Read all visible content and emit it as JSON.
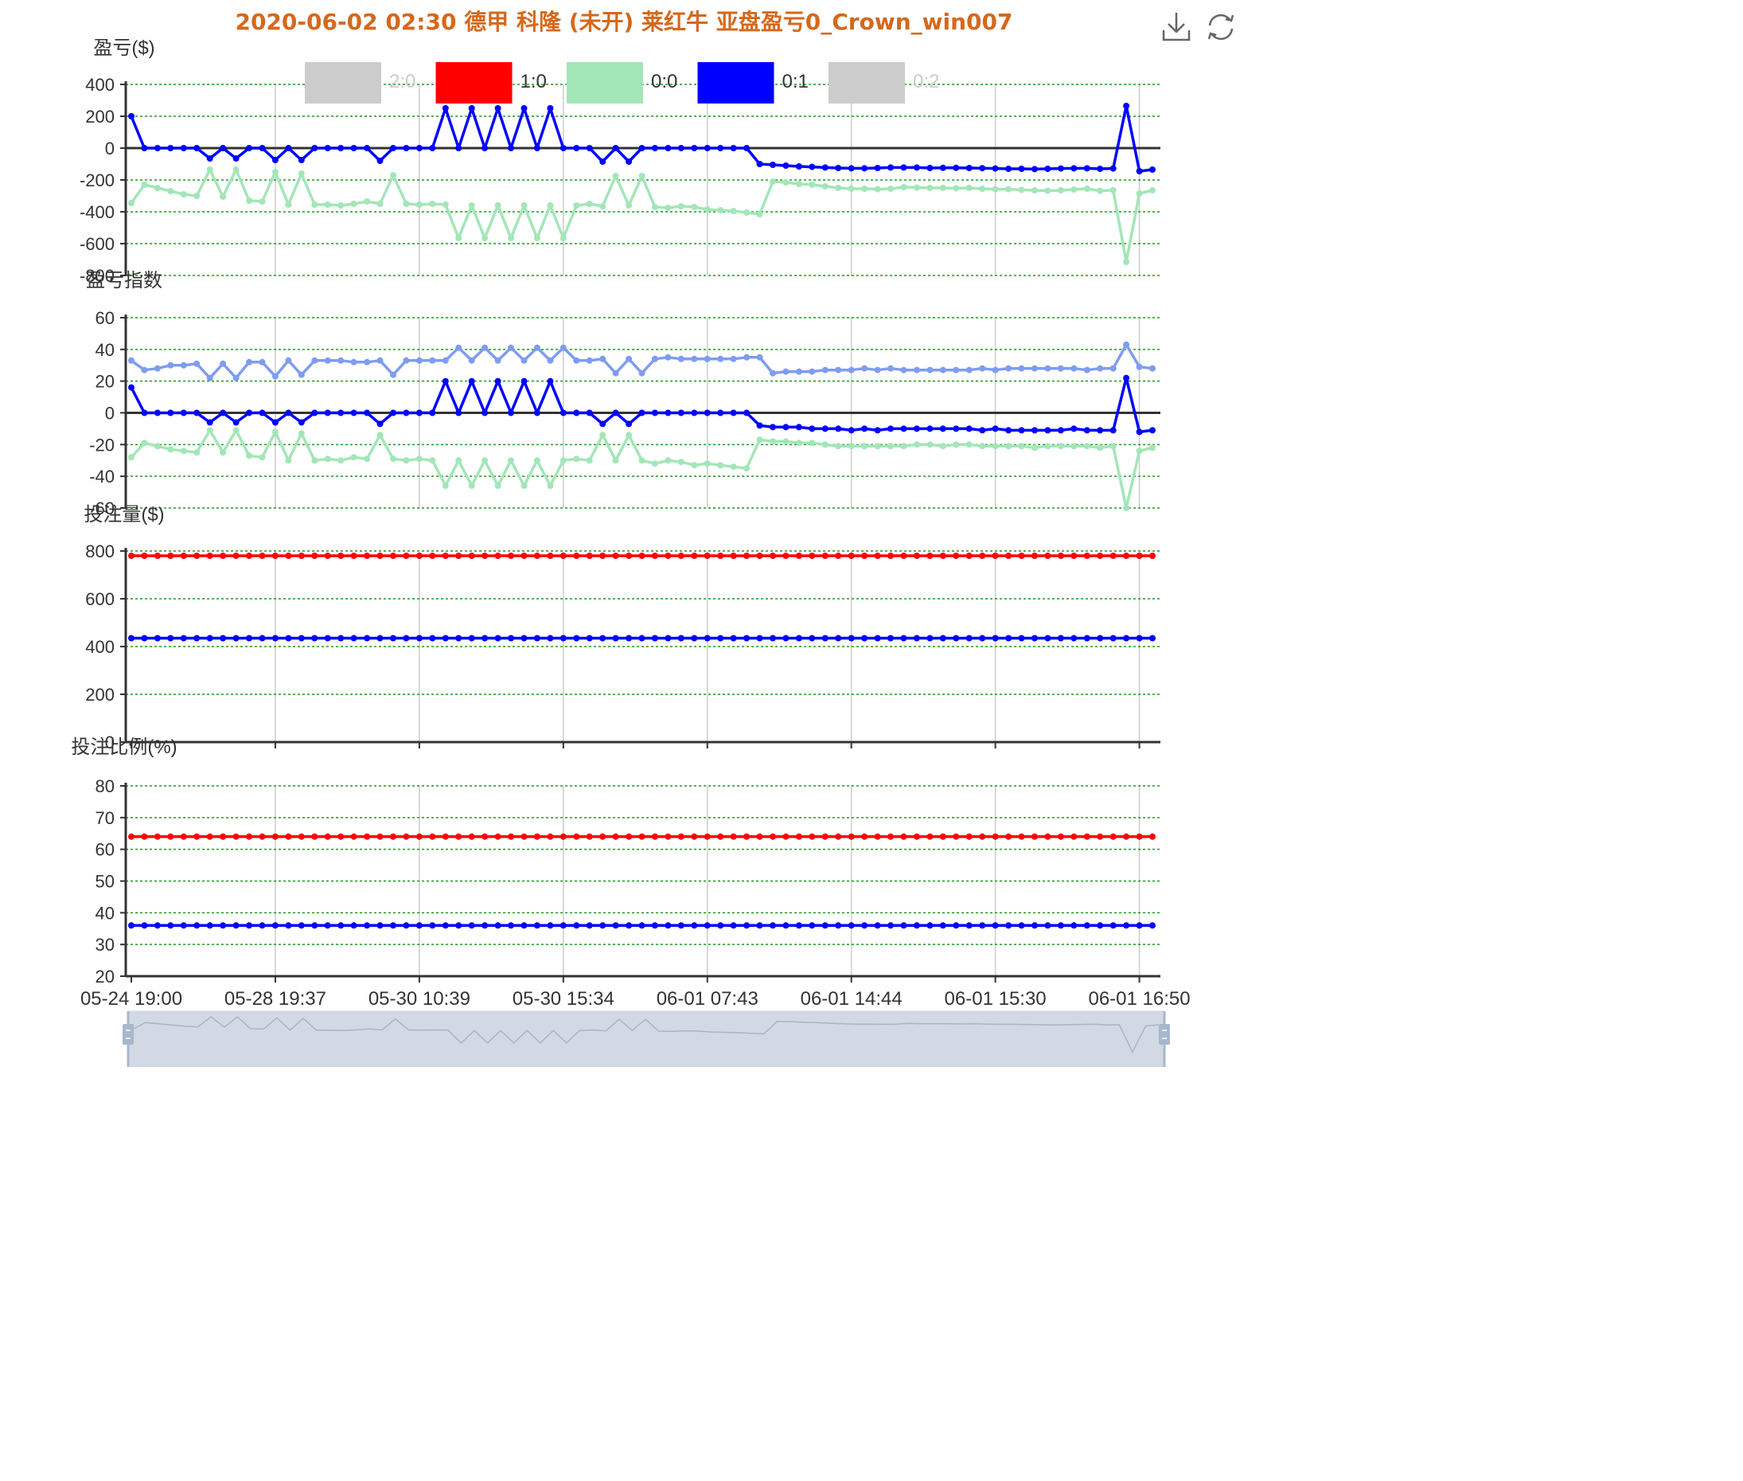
{
  "title": "2020-06-02 02:30 德甲 科隆 (未开) 莱红牛 亚盘盈亏0_Crown_win007",
  "toolbox": {
    "download_icon": "download-icon",
    "refresh_icon": "refresh-icon"
  },
  "colors": {
    "title": "#d6681b",
    "grid": "#1a9a1a",
    "axis": "#333333",
    "zoom_fill": "#d2d9e4",
    "zoom_handle": "#a7b7cc"
  },
  "chart_data": {
    "type": "line",
    "legend": {
      "placement": "top-center",
      "items": [
        {
          "name": "2:0",
          "color": "#cccccc",
          "active": false
        },
        {
          "name": "1:0",
          "color": "#ff0000",
          "active": true
        },
        {
          "name": "0:0",
          "color": "#a3e6b8",
          "active": true
        },
        {
          "name": "0:1",
          "color": "#0000ff",
          "active": true
        },
        {
          "name": "0:2",
          "color": "#cccccc",
          "active": false
        }
      ]
    },
    "x_tick_labels": [
      "05-24 19:00",
      "05-28 19:37",
      "05-30 10:39",
      "05-30 15:34",
      "06-01 07:43",
      "06-01 14:44",
      "06-01 15:30",
      "06-01 16:50"
    ],
    "x_tick_index": [
      0,
      11,
      22,
      33,
      44,
      55,
      66,
      77
    ],
    "point_count": 79,
    "vertical_grid": true,
    "datazoom": {
      "start": 0,
      "end": 100
    },
    "panels": [
      {
        "ylabel": "盈亏($)",
        "ylim": [
          -800,
          400
        ],
        "y_ticks": [
          400,
          200,
          0,
          -200,
          -400,
          -600,
          -800
        ],
        "zero_line": true,
        "series": [
          {
            "name": "0:0",
            "color": "#a3e6b8",
            "values": [
              -345,
              -230,
              -250,
              -270,
              -290,
              -300,
              -135,
              -305,
              -135,
              -330,
              -335,
              -150,
              -355,
              -160,
              -355,
              -355,
              -360,
              -350,
              -335,
              -350,
              -170,
              -350,
              -355,
              -350,
              -355,
              -565,
              -360,
              -565,
              -360,
              -565,
              -360,
              -565,
              -360,
              -565,
              -360,
              -350,
              -365,
              -175,
              -360,
              -175,
              -370,
              -375,
              -365,
              -370,
              -385,
              -390,
              -395,
              -405,
              -415,
              -210,
              -215,
              -225,
              -230,
              -240,
              -250,
              -255,
              -255,
              -258,
              -255,
              -245,
              -248,
              -250,
              -250,
              -252,
              -250,
              -255,
              -258,
              -258,
              -262,
              -265,
              -268,
              -265,
              -260,
              -255,
              -268,
              -265,
              -715,
              -285,
              -265
            ]
          },
          {
            "name": "0:1",
            "color": "#0000ff",
            "values": [
              200,
              0,
              0,
              0,
              0,
              0,
              -65,
              0,
              -65,
              0,
              0,
              -75,
              0,
              -75,
              0,
              0,
              0,
              0,
              0,
              -80,
              0,
              0,
              0,
              0,
              250,
              0,
              250,
              0,
              250,
              0,
              250,
              0,
              250,
              0,
              0,
              0,
              -85,
              0,
              -85,
              0,
              0,
              0,
              0,
              0,
              0,
              0,
              0,
              0,
              -100,
              -105,
              -110,
              -115,
              -118,
              -122,
              -125,
              -127,
              -127,
              -125,
              -122,
              -122,
              -122,
              -125,
              -124,
              -124,
              -125,
              -126,
              -128,
              -130,
              -130,
              -132,
              -130,
              -128,
              -127,
              -127,
              -130,
              -128,
              265,
              -145,
              -135
            ]
          }
        ]
      },
      {
        "ylabel": "盈亏指数",
        "ylim": [
          -60,
          60
        ],
        "y_ticks": [
          60,
          40,
          20,
          0,
          -20,
          -40,
          -60
        ],
        "zero_line": true,
        "series": [
          {
            "name": "0:0",
            "color": "#a3e6b8",
            "values": [
              -28,
              -19,
              -21,
              -23,
              -24,
              -25,
              -11,
              -25,
              -11,
              -27,
              -28,
              -12,
              -30,
              -13,
              -30,
              -29,
              -30,
              -28,
              -29,
              -14,
              -29,
              -30,
              -29,
              -30,
              -46,
              -30,
              -46,
              -30,
              -46,
              -30,
              -46,
              -30,
              -46,
              -30,
              -29,
              -30,
              -14,
              -30,
              -14,
              -30,
              -32,
              -30,
              -31,
              -33,
              -32,
              -33,
              -34,
              -35,
              -17,
              -18,
              -18,
              -19,
              -19,
              -20,
              -21,
              -21,
              -21,
              -21,
              -21,
              -21,
              -20,
              -20,
              -21,
              -20,
              -20,
              -21,
              -21,
              -21,
              -21,
              -22,
              -21,
              -21,
              -21,
              -21,
              -22,
              -21,
              -60,
              -24,
              -22
            ]
          },
          {
            "name": "0:1",
            "color": "#0000ff",
            "values": [
              16,
              0,
              0,
              0,
              0,
              0,
              -6,
              0,
              -6,
              0,
              0,
              -6,
              0,
              -6,
              0,
              0,
              0,
              0,
              0,
              -7,
              0,
              0,
              0,
              0,
              20,
              0,
              20,
              0,
              20,
              0,
              20,
              0,
              20,
              0,
              0,
              0,
              -7,
              0,
              -7,
              0,
              0,
              0,
              0,
              0,
              0,
              0,
              0,
              0,
              -8,
              -9,
              -9,
              -9,
              -10,
              -10,
              -10,
              -11,
              -10,
              -11,
              -10,
              -10,
              -10,
              -10,
              -10,
              -10,
              -10,
              -11,
              -10,
              -11,
              -11,
              -11,
              -11,
              -11,
              -10,
              -11,
              -11,
              -11,
              22,
              -12,
              -11
            ]
          },
          {
            "name": "1:0",
            "color": "#7f9cf0",
            "values": [
              33,
              27,
              28,
              30,
              30,
              31,
              22,
              31,
              22,
              32,
              32,
              23,
              33,
              24,
              33,
              33,
              33,
              32,
              32,
              33,
              24,
              33,
              33,
              33,
              33,
              41,
              33,
              41,
              33,
              41,
              33,
              41,
              33,
              41,
              33,
              33,
              34,
              25,
              34,
              25,
              34,
              35,
              34,
              34,
              34,
              34,
              34,
              35,
              35,
              25,
              26,
              26,
              26,
              27,
              27,
              27,
              28,
              27,
              28,
              27,
              27,
              27,
              27,
              27,
              27,
              28,
              27,
              28,
              28,
              28,
              28,
              28,
              28,
              27,
              28,
              28,
              43,
              29,
              28
            ]
          }
        ]
      },
      {
        "ylabel": "投注量($)",
        "ylim": [
          0,
          800
        ],
        "y_ticks": [
          800,
          600,
          400,
          200,
          0
        ],
        "zero_line": false,
        "series": [
          {
            "name": "1:0",
            "color": "#ff0000",
            "constant": 780
          },
          {
            "name": "0:1",
            "color": "#0000ff",
            "constant": 435
          }
        ]
      },
      {
        "ylabel": "投注比例(%)",
        "ylim": [
          20,
          80
        ],
        "y_ticks": [
          80,
          70,
          60,
          50,
          40,
          30,
          20
        ],
        "zero_line": false,
        "series": [
          {
            "name": "1:0",
            "color": "#ff0000",
            "constant": 64
          },
          {
            "name": "0:1",
            "color": "#0000ff",
            "constant": 36
          }
        ]
      }
    ]
  }
}
